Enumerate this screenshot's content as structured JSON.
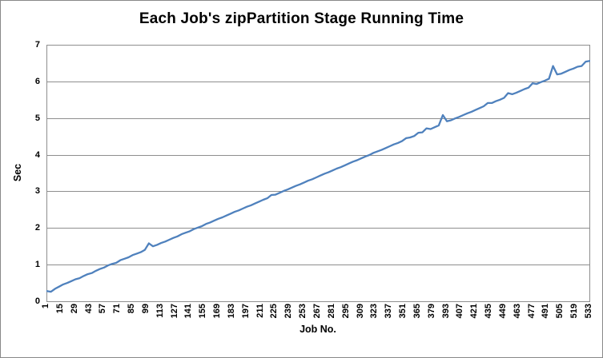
{
  "chart_data": {
    "type": "line",
    "title": "Each Job's zipPartition Stage Running Time",
    "xlabel": "Job No.",
    "ylabel": "Sec",
    "ylim": [
      0,
      7
    ],
    "y_ticks": [
      0,
      1,
      2,
      3,
      4,
      5,
      6,
      7
    ],
    "x_domain": [
      1,
      533
    ],
    "x_tick_labels": [
      "1",
      "15",
      "29",
      "43",
      "57",
      "71",
      "85",
      "99",
      "113",
      "127",
      "141",
      "155",
      "169",
      "183",
      "197",
      "211",
      "225",
      "239",
      "253",
      "267",
      "281",
      "295",
      "309",
      "323",
      "337",
      "351",
      "365",
      "379",
      "393",
      "407",
      "421",
      "435",
      "449",
      "463",
      "477",
      "491",
      "505",
      "519",
      "533"
    ],
    "grid": true,
    "legend": "none",
    "series": [
      {
        "x_start": 1,
        "x_step": 4,
        "values": [
          0.28,
          0.26,
          0.34,
          0.4,
          0.46,
          0.5,
          0.55,
          0.6,
          0.63,
          0.69,
          0.74,
          0.77,
          0.83,
          0.88,
          0.92,
          0.98,
          1.02,
          1.05,
          1.12,
          1.16,
          1.2,
          1.26,
          1.3,
          1.34,
          1.4,
          1.58,
          1.5,
          1.54,
          1.59,
          1.63,
          1.68,
          1.73,
          1.77,
          1.83,
          1.87,
          1.91,
          1.97,
          2.01,
          2.05,
          2.11,
          2.15,
          2.2,
          2.25,
          2.29,
          2.34,
          2.39,
          2.44,
          2.48,
          2.53,
          2.58,
          2.62,
          2.67,
          2.72,
          2.77,
          2.81,
          2.9,
          2.91,
          2.96,
          3.01,
          3.05,
          3.1,
          3.15,
          3.19,
          3.24,
          3.29,
          3.33,
          3.38,
          3.43,
          3.48,
          3.52,
          3.57,
          3.62,
          3.66,
          3.71,
          3.76,
          3.81,
          3.85,
          3.9,
          3.95,
          3.99,
          4.05,
          4.09,
          4.13,
          4.18,
          4.23,
          4.28,
          4.32,
          4.37,
          4.45,
          4.47,
          4.51,
          4.6,
          4.61,
          4.72,
          4.7,
          4.75,
          4.8,
          5.08,
          4.91,
          4.94,
          4.99,
          5.03,
          5.08,
          5.13,
          5.17,
          5.22,
          5.27,
          5.32,
          5.41,
          5.41,
          5.46,
          5.5,
          5.55,
          5.68,
          5.65,
          5.69,
          5.74,
          5.79,
          5.83,
          5.95,
          5.93,
          5.98,
          6.02,
          6.07,
          6.42,
          6.19,
          6.21,
          6.26,
          6.31,
          6.35,
          6.4,
          6.42,
          6.54,
          6.56
        ]
      }
    ],
    "colors": {
      "line": "#4F81BD",
      "gridline": "#8E8E8E",
      "plot_border": "#8E8E8E",
      "chart_border": "#898989",
      "text": "#000000",
      "background": "#FFFFFF"
    }
  }
}
